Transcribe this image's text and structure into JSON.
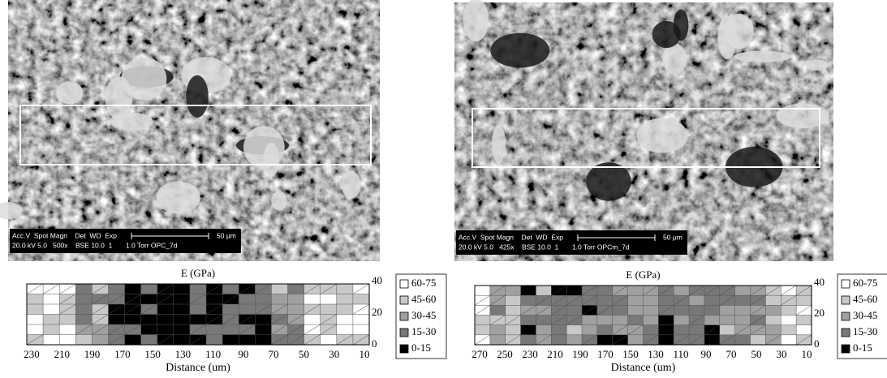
{
  "panels": [
    {
      "sem": {
        "info_line1": "Acc.V  Spot Magn    Det  WD  Exp",
        "info_line2": "20.0 kV 5.0   500x    BSE 10.0  1       1.0 Torr OPC_7d",
        "scale": "50 μm"
      },
      "map": {
        "title": "E (GPa)",
        "x_label": "Distance (um)",
        "x_ticks": [
          230,
          210,
          190,
          170,
          150,
          130,
          110,
          90,
          70,
          50,
          30,
          10
        ],
        "y_ticks": [
          40,
          20,
          0
        ]
      }
    },
    {
      "sem": {
        "info_line1": "Acc.V  Spot Magn    Det  WD  Exp",
        "info_line2": "20.0 kV 5.0   425x    BSE 10.0  1       1.0 Torr OPCm_7d",
        "scale": "50 μm"
      },
      "map": {
        "title": "E (GPa)",
        "x_label": "Distance (um)",
        "x_ticks": [
          270,
          250,
          230,
          210,
          190,
          170,
          150,
          130,
          110,
          90,
          70,
          50,
          30,
          10
        ],
        "y_ticks": [
          40,
          20,
          0
        ]
      }
    }
  ],
  "legend": [
    {
      "label": "60-75",
      "color": "#ffffff"
    },
    {
      "label": "45-60",
      "color": "#c8c8c8"
    },
    {
      "label": "30-45",
      "color": "#a0a0a0"
    },
    {
      "label": "15-30",
      "color": "#787878"
    },
    {
      "label": "0-15",
      "color": "#000000"
    }
  ]
}
